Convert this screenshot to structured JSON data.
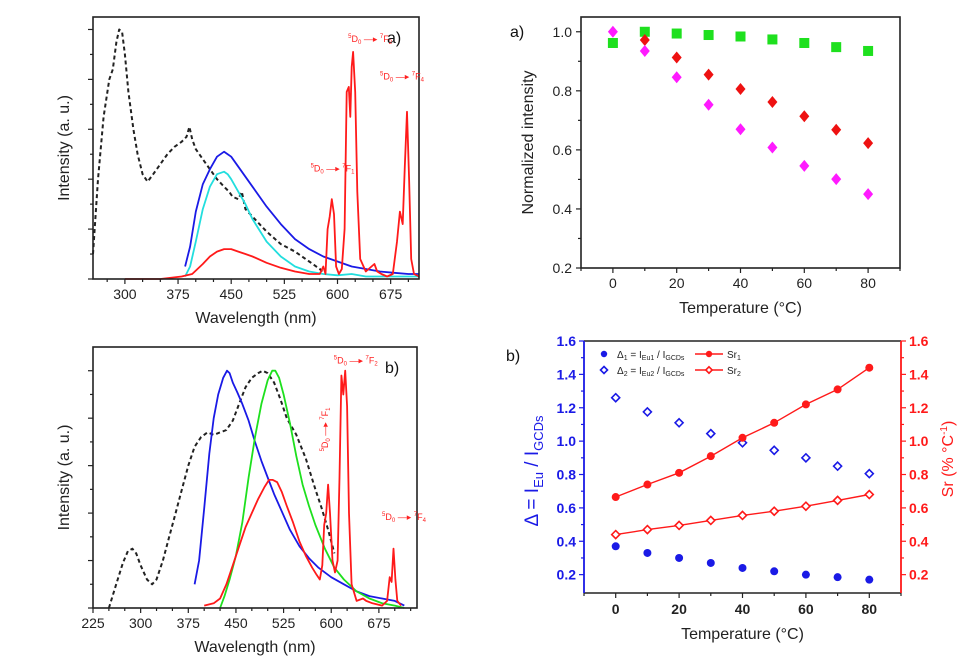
{
  "chart_data": [
    {
      "id": "spectra_a",
      "type": "line",
      "panel_label": "a)",
      "xlabel": "Wavelength (nm)",
      "ylabel": "Intensity (a. u.)",
      "xlim": [
        255,
        715
      ],
      "ylim": [
        0,
        1.05
      ],
      "xticks": [
        300,
        375,
        450,
        525,
        600,
        675
      ],
      "yticks_unlabeled": [
        0,
        0.2,
        0.4,
        0.6,
        0.8,
        1.0
      ],
      "annotations": [
        {
          "pre": "5",
          "main": "D",
          "sub": "0",
          "post_pre": "7",
          "post_main": "F",
          "post_sub": "1",
          "x": 562,
          "y": 0.43
        },
        {
          "pre": "5",
          "main": "D",
          "sub": "0",
          "post_pre": "7",
          "post_main": "F",
          "post_sub": "2",
          "x": 615,
          "y": 0.95
        },
        {
          "pre": "5",
          "main": "D",
          "sub": "0",
          "post_pre": "7",
          "post_main": "F",
          "post_sub": "4",
          "x": 660,
          "y": 0.8
        }
      ],
      "series": [
        {
          "name": "excitation",
          "color": "#222222",
          "dashed": true,
          "x": [
            255,
            262,
            270,
            278,
            283,
            288,
            292,
            296,
            300,
            305,
            312,
            318,
            325,
            332,
            340,
            350,
            360,
            370,
            380,
            387,
            391,
            395,
            400,
            410,
            420,
            430,
            440,
            447,
            452,
            460,
            465,
            470,
            480,
            490,
            500,
            520,
            540,
            560,
            575,
            582
          ],
          "y": [
            0.1,
            0.4,
            0.65,
            0.8,
            0.84,
            0.95,
            1.0,
            0.99,
            0.9,
            0.75,
            0.6,
            0.5,
            0.42,
            0.39,
            0.42,
            0.46,
            0.5,
            0.53,
            0.55,
            0.57,
            0.61,
            0.56,
            0.52,
            0.48,
            0.44,
            0.4,
            0.37,
            0.35,
            0.33,
            0.32,
            0.35,
            0.28,
            0.25,
            0.22,
            0.19,
            0.14,
            0.11,
            0.07,
            0.04,
            0.02
          ]
        },
        {
          "name": "blue-emission",
          "color": "#1a1ae6",
          "dashed": false,
          "x": [
            385,
            392,
            400,
            410,
            420,
            430,
            440,
            445,
            450,
            460,
            470,
            480,
            500,
            520,
            540,
            560,
            580,
            600,
            620,
            640,
            660,
            680,
            700,
            715
          ],
          "y": [
            0.05,
            0.13,
            0.27,
            0.38,
            0.44,
            0.49,
            0.51,
            0.5,
            0.49,
            0.45,
            0.41,
            0.37,
            0.29,
            0.22,
            0.16,
            0.12,
            0.09,
            0.07,
            0.05,
            0.04,
            0.03,
            0.025,
            0.02,
            0.02
          ]
        },
        {
          "name": "cyan-emission",
          "color": "#22dede",
          "dashed": false,
          "x": [
            385,
            392,
            400,
            410,
            420,
            430,
            440,
            445,
            450,
            460,
            470,
            480,
            500,
            520,
            540,
            560,
            580,
            600,
            620,
            640,
            660,
            680,
            700,
            715
          ],
          "y": [
            0.01,
            0.05,
            0.15,
            0.28,
            0.37,
            0.42,
            0.43,
            0.42,
            0.4,
            0.35,
            0.3,
            0.24,
            0.15,
            0.09,
            0.05,
            0.03,
            0.02,
            0.015,
            0.02,
            0.01,
            0.01,
            0.01,
            0.01,
            0.01
          ]
        },
        {
          "name": "red-emission",
          "color": "#ff1a1a",
          "dashed": false,
          "x": [
            300,
            350,
            380,
            395,
            410,
            420,
            430,
            440,
            450,
            460,
            470,
            480,
            500,
            520,
            540,
            560,
            575,
            580,
            583,
            586,
            589,
            592,
            595,
            598,
            602,
            606,
            610,
            613,
            616,
            618,
            620,
            622,
            625,
            628,
            632,
            640,
            648,
            652,
            656,
            662,
            670,
            678,
            684,
            688,
            692,
            695,
            698,
            701,
            704,
            708,
            715
          ],
          "y": [
            0.0,
            0.0,
            0.01,
            0.02,
            0.06,
            0.09,
            0.11,
            0.12,
            0.12,
            0.11,
            0.1,
            0.09,
            0.065,
            0.045,
            0.03,
            0.02,
            0.02,
            0.05,
            0.02,
            0.2,
            0.25,
            0.32,
            0.26,
            0.05,
            0.02,
            0.04,
            0.2,
            0.75,
            0.77,
            0.65,
            0.85,
            0.91,
            0.75,
            0.35,
            0.08,
            0.03,
            0.05,
            0.06,
            0.03,
            0.02,
            0.01,
            0.02,
            0.15,
            0.27,
            0.22,
            0.45,
            0.67,
            0.4,
            0.08,
            0.02,
            0.01
          ]
        }
      ]
    },
    {
      "id": "spectra_b",
      "type": "line",
      "panel_label": "b)",
      "xlabel": "Wavelength (nm)",
      "ylabel": "Intensity (a. u.)",
      "xlim": [
        225,
        735
      ],
      "ylim": [
        0,
        1.1
      ],
      "xticks": [
        225,
        300,
        375,
        450,
        525,
        600,
        675
      ],
      "yticks_unlabeled": [
        0,
        0.2,
        0.4,
        0.6,
        0.8,
        1.0
      ],
      "annotations": [
        {
          "pre": "5",
          "main": "D",
          "sub": "0",
          "post_pre": "7",
          "post_main": "F",
          "post_sub": "2",
          "x": 604,
          "y": 1.03
        },
        {
          "pre": "5",
          "main": "D",
          "sub": "0",
          "post_pre": "7",
          "post_main": "F",
          "post_sub": "1",
          "x": 595,
          "y": 0.66,
          "vertical": true
        },
        {
          "pre": "5",
          "main": "D",
          "sub": "0",
          "post_pre": "7",
          "post_main": "F",
          "post_sub": "4",
          "x": 680,
          "y": 0.37
        }
      ],
      "series": [
        {
          "name": "excitation",
          "color": "#222222",
          "dashed": true,
          "x": [
            250,
            258,
            265,
            272,
            280,
            287,
            293,
            300,
            310,
            318,
            325,
            335,
            345,
            355,
            365,
            375,
            385,
            395,
            405,
            415,
            425,
            435,
            445,
            455,
            465,
            475,
            485,
            492,
            500,
            510,
            520,
            530,
            545,
            560,
            575,
            585,
            595,
            605
          ],
          "y": [
            0.0,
            0.07,
            0.13,
            0.19,
            0.24,
            0.25,
            0.23,
            0.18,
            0.12,
            0.1,
            0.12,
            0.2,
            0.3,
            0.4,
            0.5,
            0.6,
            0.68,
            0.72,
            0.74,
            0.73,
            0.74,
            0.75,
            0.79,
            0.86,
            0.93,
            0.97,
            0.99,
            1.0,
            0.99,
            0.95,
            0.88,
            0.8,
            0.73,
            0.63,
            0.5,
            0.42,
            0.33,
            0.23
          ]
        },
        {
          "name": "blue-emission",
          "color": "#1a1ae6",
          "dashed": false,
          "x": [
            385,
            392,
            400,
            408,
            415,
            422,
            430,
            436,
            440,
            445,
            452,
            460,
            470,
            480,
            490,
            500,
            510,
            520,
            535,
            550,
            565,
            580,
            600,
            620,
            640,
            660,
            680,
            700,
            715
          ],
          "y": [
            0.1,
            0.2,
            0.42,
            0.65,
            0.8,
            0.9,
            0.97,
            1.0,
            0.99,
            0.95,
            0.91,
            0.86,
            0.79,
            0.7,
            0.62,
            0.55,
            0.48,
            0.42,
            0.33,
            0.26,
            0.21,
            0.17,
            0.13,
            0.1,
            0.07,
            0.05,
            0.04,
            0.03,
            0.01
          ]
        },
        {
          "name": "green-emission",
          "color": "#1ee01e",
          "dashed": false,
          "x": [
            425,
            432,
            440,
            450,
            460,
            470,
            480,
            490,
            500,
            507,
            512,
            518,
            525,
            535,
            545,
            555,
            565,
            575,
            590,
            605,
            620,
            640,
            660,
            680,
            700,
            715
          ],
          "y": [
            0.0,
            0.05,
            0.12,
            0.22,
            0.36,
            0.55,
            0.72,
            0.86,
            0.96,
            1.0,
            1.0,
            0.97,
            0.9,
            0.78,
            0.64,
            0.52,
            0.43,
            0.35,
            0.25,
            0.17,
            0.12,
            0.07,
            0.04,
            0.02,
            0.01,
            0.0
          ]
        },
        {
          "name": "red-emission",
          "color": "#ff1a1a",
          "dashed": false,
          "x": [
            400,
            415,
            425,
            435,
            445,
            455,
            465,
            475,
            485,
            495,
            502,
            508,
            515,
            522,
            530,
            540,
            550,
            560,
            570,
            577,
            582,
            586,
            589,
            592,
            595,
            598,
            602,
            606,
            610,
            613,
            616,
            619,
            622,
            625,
            628,
            632,
            640,
            650,
            655,
            665,
            680,
            688,
            692,
            695,
            698,
            701,
            704,
            710
          ],
          "y": [
            0.01,
            0.02,
            0.04,
            0.1,
            0.18,
            0.26,
            0.34,
            0.4,
            0.46,
            0.51,
            0.54,
            0.54,
            0.53,
            0.49,
            0.43,
            0.36,
            0.28,
            0.22,
            0.17,
            0.14,
            0.12,
            0.18,
            0.35,
            0.4,
            0.52,
            0.4,
            0.2,
            0.15,
            0.2,
            0.55,
            0.98,
            0.9,
            1.0,
            0.85,
            0.4,
            0.1,
            0.03,
            0.04,
            0.03,
            0.02,
            0.01,
            0.03,
            0.13,
            0.11,
            0.25,
            0.12,
            0.03,
            0.01
          ]
        }
      ]
    },
    {
      "id": "normalized_a",
      "type": "scatter",
      "panel_label": "a)",
      "xlabel": "Temperature (°C)",
      "ylabel": "Normalized intensity",
      "xlim": [
        -10,
        90
      ],
      "ylim": [
        0.2,
        1.05
      ],
      "xticks": [
        0,
        20,
        40,
        60,
        80
      ],
      "yticks": [
        0.2,
        0.4,
        0.6,
        0.8,
        1.0
      ],
      "ytick_labels": [
        "0.2",
        "0.4",
        "0.6",
        "0.8",
        "1.0"
      ],
      "series": [
        {
          "name": "green",
          "color": "#1ee01e",
          "marker": "square",
          "x": [
            0,
            10,
            20,
            30,
            40,
            50,
            60,
            70,
            80
          ],
          "y": [
            0.962,
            1.0,
            0.994,
            0.989,
            0.984,
            0.974,
            0.962,
            0.948,
            0.935
          ]
        },
        {
          "name": "red",
          "color": "#ee1111",
          "marker": "diamond",
          "x": [
            10,
            20,
            30,
            40,
            50,
            60,
            70,
            80
          ],
          "y": [
            0.972,
            0.913,
            0.855,
            0.806,
            0.762,
            0.714,
            0.668,
            0.623
          ]
        },
        {
          "name": "magenta",
          "color": "#ff1aff",
          "marker": "diamond",
          "x": [
            0,
            10,
            20,
            30,
            40,
            50,
            60,
            70,
            80
          ],
          "y": [
            1.0,
            0.935,
            0.846,
            0.753,
            0.67,
            0.608,
            0.546,
            0.501,
            0.45
          ]
        }
      ]
    },
    {
      "id": "ratio_b",
      "type": "scatter",
      "panel_label": "b)",
      "xlabel": "Temperature (°C)",
      "ylabel_left": "Δ = I_Eu / I_GCDs",
      "ylabel_right": "Sr (% °C⁻¹)",
      "xlim": [
        -10,
        90
      ],
      "ylim": [
        0.09,
        1.6
      ],
      "ylim_right": [
        0.09,
        1.6
      ],
      "xticks": [
        0,
        20,
        40,
        60,
        80
      ],
      "yticks": [
        0.2,
        0.4,
        0.6,
        0.8,
        1.0,
        1.2,
        1.4,
        1.6
      ],
      "ytick_labels": [
        "0.2",
        "0.4",
        "0.6",
        "0.8",
        "1.0",
        "1.2",
        "1.4",
        "1.6"
      ],
      "left_axis_color": "#1a1ae6",
      "right_axis_color": "#ff1a1a",
      "legend": [
        {
          "label_main": "Δ",
          "label_sub": "1",
          "eq": " = I",
          "eq_sub": "Eu1",
          "eq2": " / I",
          "eq2_sub": "GCDs",
          "marker": "filled-circle",
          "color": "#1a1ae6"
        },
        {
          "label_main": "Δ",
          "label_sub": "2",
          "eq": " = I",
          "eq_sub": "Eu2",
          "eq2": " / I",
          "eq2_sub": "GCDs",
          "marker": "open-diamond",
          "color": "#1a1ae6"
        },
        {
          "label_main": "Sr",
          "label_sub": "1",
          "marker": "filled-circle-line",
          "color": "#ff1a1a"
        },
        {
          "label_main": "Sr",
          "label_sub": "2",
          "marker": "open-diamond-line",
          "color": "#ff1a1a"
        }
      ],
      "series": [
        {
          "name": "Δ1 = IEu1 / IGCDs",
          "axis": "left",
          "color": "#1a1ae6",
          "marker": "filled-circle",
          "line": false,
          "x": [
            0,
            10,
            20,
            30,
            40,
            50,
            60,
            70,
            80
          ],
          "y": [
            0.37,
            0.33,
            0.3,
            0.27,
            0.24,
            0.22,
            0.2,
            0.185,
            0.17
          ]
        },
        {
          "name": "Δ2 = IEu2 / IGCDs",
          "axis": "left",
          "color": "#1a1ae6",
          "marker": "open-diamond",
          "line": false,
          "x": [
            0,
            10,
            20,
            30,
            40,
            50,
            60,
            70,
            80
          ],
          "y": [
            1.26,
            1.175,
            1.11,
            1.045,
            0.99,
            0.945,
            0.9,
            0.85,
            0.805
          ]
        },
        {
          "name": "Sr1",
          "axis": "right",
          "color": "#ff1a1a",
          "marker": "filled-circle",
          "line": true,
          "x": [
            0,
            10,
            20,
            30,
            40,
            50,
            60,
            70,
            80
          ],
          "y": [
            0.665,
            0.74,
            0.81,
            0.91,
            1.02,
            1.11,
            1.22,
            1.31,
            1.44
          ]
        },
        {
          "name": "Sr2",
          "axis": "right",
          "color": "#ff1a1a",
          "marker": "open-diamond",
          "line": true,
          "x": [
            0,
            10,
            20,
            30,
            40,
            50,
            60,
            70,
            80
          ],
          "y": [
            0.44,
            0.47,
            0.495,
            0.525,
            0.555,
            0.58,
            0.61,
            0.645,
            0.68
          ]
        }
      ]
    }
  ]
}
